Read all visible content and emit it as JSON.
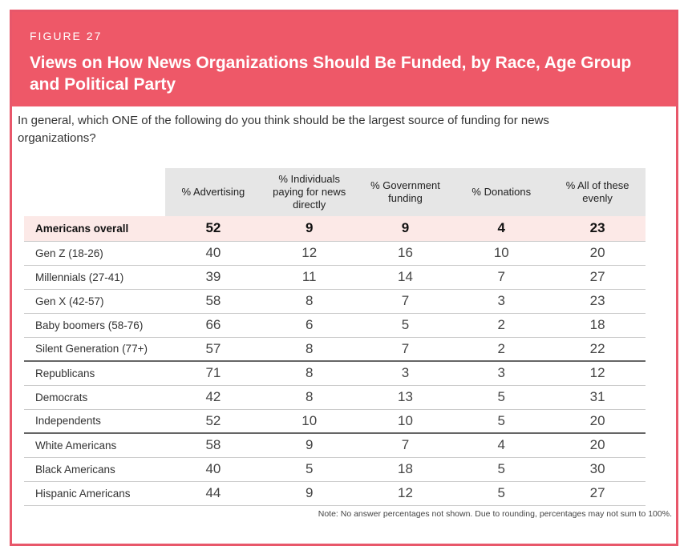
{
  "header": {
    "figure_label": "FIGURE 27",
    "title": "Views on How News Organizations Should Be Funded, by Race, Age Group and Political Party"
  },
  "question": "In general, which ONE of the following do you think should be the largest source of funding for news organizations?",
  "note": "Note: No answer percentages not shown. Due to rounding, percentages may not sum to 100%.",
  "colors": {
    "header_bg": "#ee5868",
    "overall_row_bg": "#fce9e7",
    "column_header_bg": "#e6e6e6"
  },
  "chart_data": {
    "type": "table",
    "columns": [
      "% Advertising",
      "% Individuals paying for news directly",
      "% Government funding",
      "% Donations",
      "% All of these evenly"
    ],
    "rows": [
      {
        "label": "Americans overall",
        "values": [
          52,
          9,
          9,
          4,
          23
        ]
      },
      {
        "label": "Gen Z (18-26)",
        "values": [
          40,
          12,
          16,
          10,
          20
        ]
      },
      {
        "label": "Millennials (27-41)",
        "values": [
          39,
          11,
          14,
          7,
          27
        ]
      },
      {
        "label": "Gen X (42-57)",
        "values": [
          58,
          8,
          7,
          3,
          23
        ]
      },
      {
        "label": "Baby boomers (58-76)",
        "values": [
          66,
          6,
          5,
          2,
          18
        ]
      },
      {
        "label": "Silent Generation (77+)",
        "values": [
          57,
          8,
          7,
          2,
          22
        ]
      },
      {
        "label": "Republicans",
        "values": [
          71,
          8,
          3,
          3,
          12
        ]
      },
      {
        "label": "Democrats",
        "values": [
          42,
          8,
          13,
          5,
          31
        ]
      },
      {
        "label": "Independents",
        "values": [
          52,
          10,
          10,
          5,
          20
        ]
      },
      {
        "label": "White Americans",
        "values": [
          58,
          9,
          7,
          4,
          20
        ]
      },
      {
        "label": "Black Americans",
        "values": [
          40,
          5,
          18,
          5,
          30
        ]
      },
      {
        "label": "Hispanic Americans",
        "values": [
          44,
          9,
          12,
          5,
          27
        ]
      }
    ]
  }
}
